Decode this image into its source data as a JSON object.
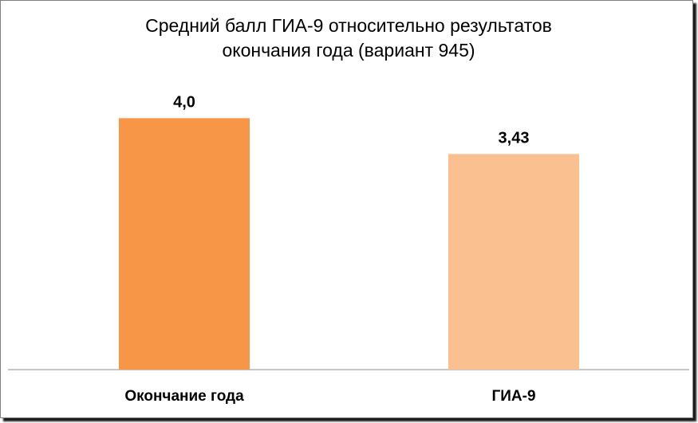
{
  "chart_data": {
    "type": "bar",
    "title": [
      "Средний балл ГИА-9 относительно результатов",
      "окончания года (вариант 945)"
    ],
    "categories": [
      "Окончание года",
      "ГИА-9"
    ],
    "values": [
      4.0,
      3.43
    ],
    "data_labels": [
      "4,0",
      "3,43"
    ],
    "colors": [
      "#F79646",
      "#FAC090"
    ],
    "ylim": [
      0,
      4.6
    ],
    "grid": false,
    "legend": "none"
  }
}
